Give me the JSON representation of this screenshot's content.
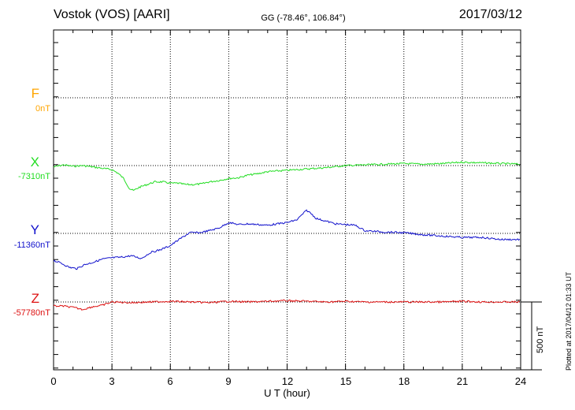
{
  "header": {
    "station": "Vostok (VOS)  [AARI]",
    "coords": "GG (-78.46°, 106.84°)",
    "date": "2017/03/12"
  },
  "components": [
    {
      "letter": "F",
      "baseline": "0nT",
      "color": "#ffa500"
    },
    {
      "letter": "X",
      "baseline": "-7310nT",
      "color": "#22dd22"
    },
    {
      "letter": "Y",
      "baseline": "-11360nT",
      "color": "#1111cc"
    },
    {
      "letter": "Z",
      "baseline": "-57780nT",
      "color": "#dd1111"
    }
  ],
  "scale_bar_label": "500 nT",
  "plotted_note": "Plotted at 2017/04/12 01:33 UT",
  "chart_data": {
    "type": "line",
    "xlabel": "U T (hour)",
    "xlim": [
      0,
      24
    ],
    "xticks": [
      "0",
      "3",
      "6",
      "9",
      "12",
      "15",
      "18",
      "21",
      "24"
    ],
    "y_unit": "nT",
    "scale_bar_nT": 500,
    "grid": true,
    "series": [
      {
        "name": "F",
        "color": "#ffa500",
        "baseline_nT": 0,
        "x": [],
        "y": []
      },
      {
        "name": "X",
        "color": "#22dd22",
        "baseline_nT": -7310,
        "x": [
          0,
          0.5,
          1,
          1.5,
          2,
          2.5,
          3,
          3.3,
          3.6,
          3.9,
          4.1,
          4.4,
          4.8,
          5.2,
          5.6,
          6,
          6.4,
          6.8,
          7.2,
          7.6,
          8,
          8.5,
          9,
          9.5,
          10,
          10.5,
          11,
          12,
          13,
          14,
          15,
          16,
          17,
          18,
          19,
          20,
          21,
          22,
          23,
          24
        ],
        "y": [
          -10,
          5,
          -5,
          0,
          -10,
          -20,
          -30,
          -55,
          -95,
          -170,
          -185,
          -160,
          -140,
          -120,
          -120,
          -130,
          -130,
          -140,
          -140,
          -135,
          -120,
          -110,
          -95,
          -90,
          -70,
          -60,
          -45,
          -35,
          -25,
          -15,
          0,
          5,
          10,
          15,
          10,
          15,
          25,
          20,
          15,
          10
        ]
      },
      {
        "name": "Y",
        "color": "#1111cc",
        "baseline_nT": -11360,
        "x": [
          0,
          0.4,
          0.8,
          1.2,
          1.6,
          2,
          2.5,
          3,
          3.5,
          4,
          4.5,
          5,
          5.5,
          6,
          6.5,
          7,
          7.5,
          8,
          8.5,
          9,
          9.5,
          10,
          11,
          12,
          12.5,
          13,
          13.2,
          13.5,
          14,
          14.5,
          15,
          15.5,
          16,
          16.5,
          17,
          18,
          19,
          20,
          21,
          22,
          23,
          24
        ],
        "y": [
          -200,
          -220,
          -250,
          -260,
          -230,
          -215,
          -190,
          -180,
          -175,
          -165,
          -185,
          -140,
          -120,
          -90,
          -40,
          5,
          5,
          20,
          40,
          80,
          65,
          70,
          60,
          80,
          100,
          170,
          150,
          110,
          90,
          70,
          65,
          60,
          20,
          15,
          10,
          5,
          -10,
          -20,
          -30,
          -30,
          -45,
          -45
        ]
      },
      {
        "name": "Z",
        "color": "#dd1111",
        "baseline_nT": -57780,
        "x": [
          0,
          0.5,
          1,
          1.5,
          2,
          2.5,
          3,
          4,
          5,
          6,
          7,
          8,
          9,
          10,
          11,
          12,
          13,
          14,
          15,
          16,
          17,
          18,
          19,
          20,
          21,
          22,
          23,
          24
        ],
        "y": [
          -30,
          -30,
          -40,
          -55,
          -35,
          -25,
          0,
          -5,
          0,
          5,
          0,
          -5,
          5,
          0,
          5,
          10,
          5,
          0,
          5,
          0,
          0,
          0,
          0,
          0,
          5,
          0,
          0,
          0
        ]
      }
    ]
  }
}
